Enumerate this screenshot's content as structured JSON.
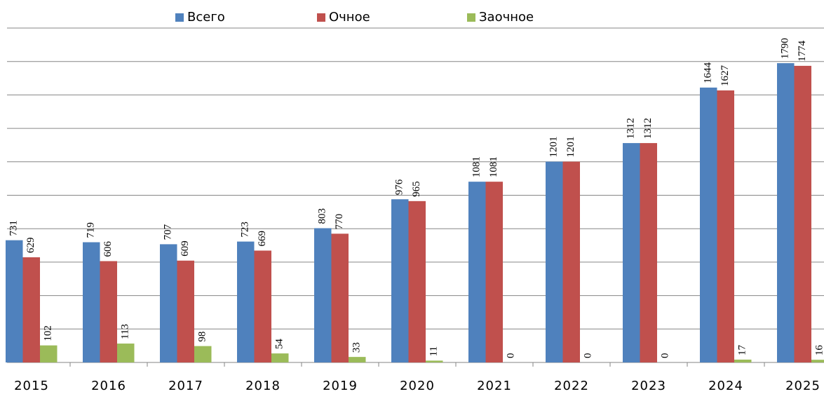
{
  "chart_data": {
    "type": "bar",
    "categories": [
      "2015",
      "2016",
      "2017",
      "2018",
      "2019",
      "2020",
      "2021",
      "2022",
      "2023",
      "2024",
      "2025"
    ],
    "series": [
      {
        "name": "Всего",
        "color": "#4f81bd",
        "values": [
          731,
          719,
          707,
          723,
          803,
          976,
          1081,
          1201,
          1312,
          1644,
          1790
        ]
      },
      {
        "name": "Очное",
        "color": "#c0504d",
        "values": [
          629,
          606,
          609,
          669,
          770,
          965,
          1081,
          1201,
          1312,
          1627,
          1774
        ]
      },
      {
        "name": "Заочное",
        "color": "#9bbb59",
        "values": [
          102,
          113,
          98,
          54,
          33,
          11,
          0,
          0,
          0,
          17,
          16
        ]
      }
    ],
    "ylim": [
      0,
      2000
    ],
    "yticks": [
      0,
      200,
      400,
      600,
      800,
      1000,
      1200,
      1400,
      1600,
      1800,
      2000
    ],
    "grid": true,
    "legend": "top"
  }
}
